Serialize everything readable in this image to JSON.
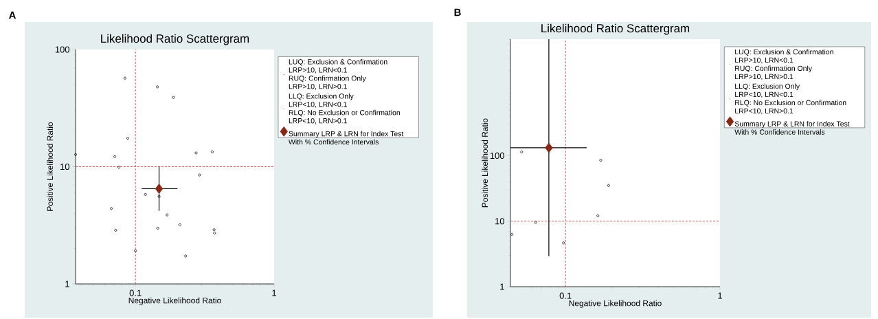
{
  "chart_data": [
    {
      "type": "scatter",
      "title": "Likelihood Ratio Scattergram",
      "xlabel": "Negative Likelihood Ratio",
      "ylabel": "Positive Likelihood Ratio",
      "annotations": [
        "A",
        "LUQ: Exclusion & Confirmation",
        "LRP>10, LRN<0.1",
        "RUQ: Confirmation Only",
        "LRP>10, LRN>0.1",
        "LLQ: Exclusion Only",
        "LRP<10, LRN<0.1",
        "RLQ: No Exclusion or Confirmation",
        "LRP<10, LRN>0.1"
      ],
      "log": "xy",
      "xlim": [
        0.037,
        1
      ],
      "ylim": [
        1,
        100
      ],
      "xticks": [
        0.1,
        1
      ],
      "yticks": [
        1,
        10,
        100
      ],
      "legend": "right",
      "ref_lines": [
        {
          "axis": "x",
          "value": 0.1,
          "color": "#e5535b",
          "line_style": "dashed"
        },
        {
          "axis": "y",
          "value": 10,
          "color": "#e5535b",
          "line_style": "dashed"
        }
      ],
      "series": [
        {
          "color": "#000000",
          "marker": "circle",
          "x": [
            0.037,
            0.084,
            0.088,
            0.071,
            0.076,
            0.067,
            0.072,
            0.1,
            0.118,
            0.144,
            0.188,
            0.148,
            0.145,
            0.169,
            0.209,
            0.23,
            0.274,
            0.29,
            0.358,
            0.369,
            0.372
          ],
          "values": [
            12.7,
            57,
            17.5,
            12.2,
            9.9,
            4.4,
            2.87,
            1.92,
            5.8,
            48,
            39,
            5.57,
            2.99,
            3.88,
            3.2,
            1.73,
            13.1,
            8.5,
            13.4,
            2.9,
            2.72
          ]
        },
        {
          "name": "Summary LRP & LRN for Index Test With  % Confidence Intervals",
          "color": "#8b2612",
          "marker": "diamond",
          "x": [
            0.148
          ],
          "values": [
            6.49
          ],
          "errors": [
            [
              4.2,
              10.0
            ]
          ],
          "xerrors": [
            [
              0.111,
              0.201
            ]
          ]
        }
      ]
    },
    {
      "type": "scatter",
      "title": "Likelihood Ratio Scattergram",
      "xlabel": "Negative Likelihood Ratio",
      "ylabel": "Positive Likelihood Ratio",
      "annotations": [
        "B",
        "LUQ: Exclusion & Confirmation",
        "LRP>10, LRN<0.1",
        "RUQ: Confirmation Only",
        "LRP>10, LRN>0.1",
        "LLQ: Exclusion Only",
        "LRP<10, LRN<0.1",
        "RLQ: No Exclusion or Confirmation",
        "LRP<10, LRN>0.1"
      ],
      "log": "xy",
      "xlim": [
        0.044,
        1
      ],
      "ylim": [
        1,
        6000
      ],
      "xticks": [
        0.1,
        1
      ],
      "yticks": [
        1,
        10,
        100
      ],
      "legend": "right",
      "ref_lines": [
        {
          "axis": "x",
          "value": 0.1,
          "color": "#e5535b",
          "line_style": "dashed"
        },
        {
          "axis": "y",
          "value": 10,
          "color": "#e5535b",
          "line_style": "dashed"
        }
      ],
      "series": [
        {
          "color": "#000000",
          "marker": "circle",
          "x": [
            0.045,
            0.052,
            0.064,
            0.097,
            0.162,
            0.169,
            0.19
          ],
          "values": [
            6.3,
            114,
            9.6,
            4.66,
            12.1,
            85,
            35
          ]
        },
        {
          "name": "Summary LRP & LRN for Index Test With  % Confidence Intervals",
          "color": "#8b2612",
          "marker": "diamond",
          "x": [
            0.078
          ],
          "values": [
            132
          ],
          "errors": [
            [
              2.94,
              6000
            ]
          ],
          "xerrors": [
            [
              0.044,
              0.137
            ]
          ]
        }
      ]
    }
  ]
}
